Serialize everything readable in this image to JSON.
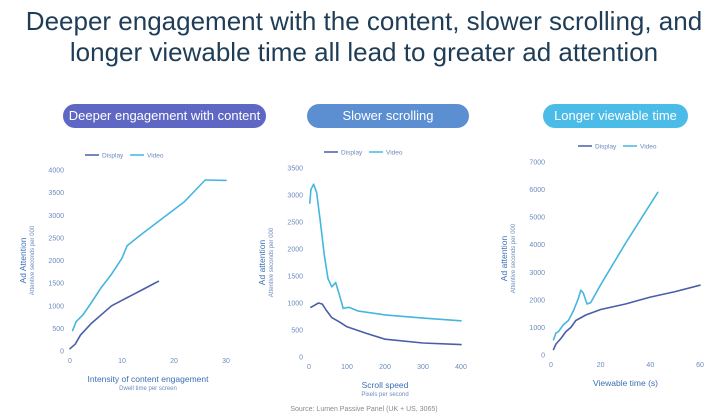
{
  "title": "Deeper engagement with the content, slower scrolling, and longer viewable time all lead to greater ad attention",
  "pills": [
    "Deeper engagement with content",
    "Slower scrolling",
    "Longer viewable time"
  ],
  "source": "Source: Lumen Passive Panel (UK + US, 3065)",
  "colors": {
    "display": "#4a5ea8",
    "video": "#45b6e0",
    "axis_text": "#6b8bbd",
    "axis_label": "#3a6fb4"
  },
  "chart_data": [
    {
      "type": "line",
      "title": "",
      "xlabel": "Intensity of content engagement",
      "xsublabel": "Dwell time per screen",
      "ylabel": "Ad Attention",
      "ysublabel": "Attentive seconds per 000",
      "xlim": [
        0,
        30
      ],
      "ylim": [
        0,
        4000
      ],
      "xticks": [
        0,
        10,
        20,
        30
      ],
      "yticks": [
        0,
        500,
        1000,
        1500,
        2000,
        2500,
        3000,
        3500,
        4000
      ],
      "legend": [
        "Display",
        "Video"
      ],
      "series": [
        {
          "name": "Display",
          "x": [
            0,
            1,
            2,
            4,
            6,
            8,
            10,
            12,
            14,
            16,
            17
          ],
          "y": [
            50,
            150,
            350,
            600,
            800,
            1000,
            1120,
            1240,
            1360,
            1480,
            1540
          ]
        },
        {
          "name": "Video",
          "x": [
            0.5,
            1.2,
            2.5,
            4,
            6,
            8,
            10,
            11,
            14,
            18,
            22,
            26,
            30
          ],
          "y": [
            450,
            650,
            800,
            1050,
            1400,
            1700,
            2050,
            2330,
            2600,
            2950,
            3300,
            3780,
            3770
          ]
        }
      ]
    },
    {
      "type": "line",
      "title": "",
      "xlabel": "Scroll speed",
      "xsublabel": "Pixels per second",
      "ylabel": "Ad attention",
      "ysublabel": "Attentive seconds per 000",
      "xlim": [
        0,
        400
      ],
      "ylim": [
        0,
        3500
      ],
      "xticks": [
        0,
        100,
        200,
        300,
        400
      ],
      "yticks": [
        0,
        500,
        1000,
        1500,
        2000,
        2500,
        3000,
        3500
      ],
      "legend": [
        "Display",
        "Video"
      ],
      "series": [
        {
          "name": "Display",
          "x": [
            5,
            15,
            25,
            35,
            45,
            60,
            80,
            100,
            150,
            200,
            300,
            400
          ],
          "y": [
            920,
            960,
            1000,
            980,
            870,
            730,
            650,
            560,
            440,
            330,
            260,
            230
          ]
        },
        {
          "name": "Video",
          "x": [
            2,
            5,
            12,
            20,
            30,
            40,
            50,
            60,
            70,
            80,
            90,
            105,
            130,
            200,
            300,
            400
          ],
          "y": [
            2850,
            3100,
            3200,
            3050,
            2500,
            1900,
            1450,
            1300,
            1380,
            1150,
            900,
            920,
            850,
            780,
            720,
            670
          ]
        }
      ]
    },
    {
      "type": "line",
      "title": "",
      "xlabel": "Viewable time (s)",
      "xsublabel": "",
      "ylabel": "Ad attention",
      "ysublabel": "Attentive seconds per 000",
      "xlim": [
        0,
        60
      ],
      "ylim": [
        0,
        7000
      ],
      "xticks": [
        0,
        20,
        40,
        60
      ],
      "yticks": [
        0,
        1000,
        2000,
        3000,
        4000,
        5000,
        6000,
        7000
      ],
      "legend": [
        "Display",
        "Video"
      ],
      "series": [
        {
          "name": "Display",
          "x": [
            1,
            2,
            4,
            6,
            8,
            10,
            14,
            20,
            30,
            40,
            50,
            60
          ],
          "y": [
            200,
            400,
            600,
            850,
            1000,
            1250,
            1450,
            1650,
            1850,
            2100,
            2300,
            2530
          ]
        },
        {
          "name": "Video",
          "x": [
            1,
            2,
            3,
            5,
            7,
            9,
            11,
            12,
            13,
            14.5,
            16,
            20,
            30,
            43
          ],
          "y": [
            550,
            800,
            850,
            1100,
            1250,
            1600,
            2050,
            2350,
            2250,
            1850,
            1900,
            2550,
            4050,
            5900
          ]
        }
      ]
    }
  ]
}
